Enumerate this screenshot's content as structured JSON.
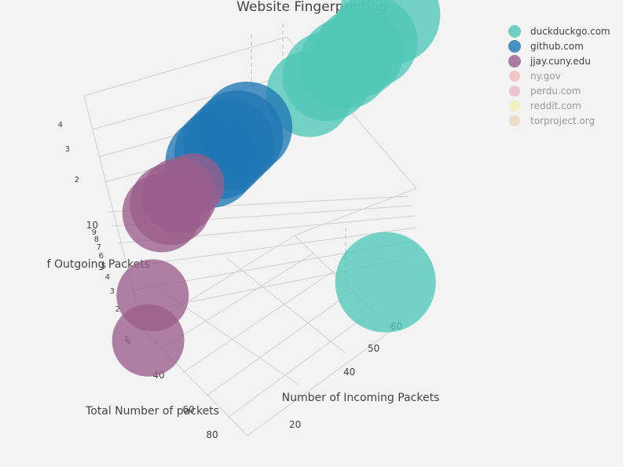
{
  "chart_data": {
    "type": "scatter3d",
    "title": "Website Fingerprinting",
    "axes": {
      "x": {
        "label": "Number of Incoming Packets",
        "ticks": [
          "20",
          "40",
          "50",
          "60"
        ]
      },
      "y": {
        "label": "Total Number of packets",
        "ticks": [
          "9",
          "40",
          "60",
          "80"
        ]
      },
      "z": {
        "label": "Number of Outgoing Packets",
        "ticks_upper": [
          "4",
          "3",
          "2"
        ],
        "ticks_lower": [
          "10",
          "9",
          "8",
          "7",
          "6",
          "5",
          "4",
          "3",
          "2",
          "1"
        ]
      }
    },
    "legend_position": "top-right",
    "series": [
      {
        "name": "duckduckgo.com",
        "color": "#4fc7b7",
        "visible": true,
        "points": [
          {
            "incoming": 62,
            "outgoing": 4,
            "total": 66,
            "size": 64
          },
          {
            "incoming": 58,
            "outgoing": 3.6,
            "total": 62,
            "size": 58
          },
          {
            "incoming": 55,
            "outgoing": 3.5,
            "total": 59,
            "size": 57
          },
          {
            "incoming": 52,
            "outgoing": 3.4,
            "total": 56,
            "size": 58
          },
          {
            "incoming": 48,
            "outgoing": 3.3,
            "total": 52,
            "size": 57
          },
          {
            "incoming": 44,
            "outgoing": 3.1,
            "total": 48,
            "size": 55
          },
          {
            "incoming": 61,
            "outgoing": 1,
            "total": 62,
            "size": 64
          }
        ]
      },
      {
        "name": "github.com",
        "color": "#1f77b4",
        "visible": true,
        "points": [
          {
            "incoming": 30,
            "outgoing": 3.0,
            "total": 34,
            "size": 58
          },
          {
            "incoming": 28,
            "outgoing": 2.9,
            "total": 32,
            "size": 58
          },
          {
            "incoming": 26,
            "outgoing": 2.8,
            "total": 30,
            "size": 58
          },
          {
            "incoming": 24,
            "outgoing": 2.7,
            "total": 28,
            "size": 58
          },
          {
            "incoming": 22,
            "outgoing": 2.6,
            "total": 26,
            "size": 58
          }
        ]
      },
      {
        "name": "jjay.cuny.edu",
        "color": "#9b5d8c",
        "visible": true,
        "points": [
          {
            "incoming": 18,
            "outgoing": 2.3,
            "total": 22,
            "size": 40
          },
          {
            "incoming": 15,
            "outgoing": 2.2,
            "total": 19,
            "size": 48
          },
          {
            "incoming": 13,
            "outgoing": 2.1,
            "total": 17,
            "size": 52
          },
          {
            "incoming": 11,
            "outgoing": 2.0,
            "total": 15,
            "size": 50
          },
          {
            "incoming": 8,
            "outgoing": 2.2,
            "total": 12,
            "size": 8
          },
          {
            "incoming": 9,
            "outgoing": 1.4,
            "total": 10,
            "size": 46
          },
          {
            "incoming": 8,
            "outgoing": 1,
            "total": 9,
            "size": 46
          }
        ]
      },
      {
        "name": "ny.gov",
        "color": "#f4a6a6",
        "visible": false,
        "points": []
      },
      {
        "name": "perdu.com",
        "color": "#e9a3b5",
        "visible": false,
        "points": []
      },
      {
        "name": "reddit.com",
        "color": "#f4ee9c",
        "visible": false,
        "points": []
      },
      {
        "name": "torproject.org",
        "color": "#e7cca9",
        "visible": false,
        "points": []
      }
    ]
  }
}
